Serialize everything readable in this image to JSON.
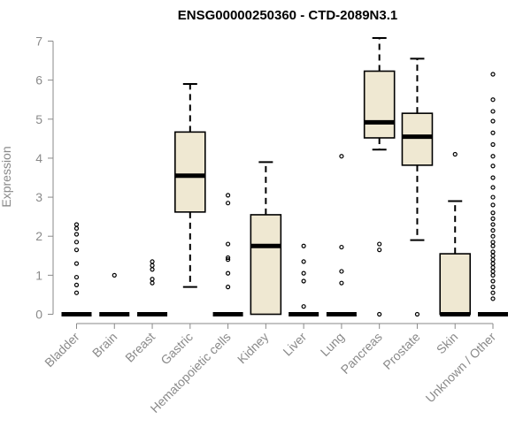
{
  "chart_data": {
    "type": "boxplot",
    "title": "ENSG00000250360 - CTD-2089N3.1",
    "ylabel": "Expression",
    "xlabel": "",
    "ylim": [
      0,
      7
    ],
    "yticks": [
      0,
      1,
      2,
      3,
      4,
      5,
      6,
      7
    ],
    "grid": false,
    "colors": {
      "box_fill": "#efe8d2",
      "stroke": "#000000",
      "axis": "#8a8a8a"
    },
    "categories": [
      "Bladder",
      "Brain",
      "Breast",
      "Gastric",
      "Hematopoietic cells",
      "Kidney",
      "Liver",
      "Lung",
      "Pancreas",
      "Prostate",
      "Skin",
      "Unknown / Other"
    ],
    "boxes": [
      {
        "name": "Bladder",
        "min": 0,
        "q1": 0,
        "median": 0,
        "q3": 0,
        "max": 0,
        "outliers": [
          0.55,
          0.75,
          0.95,
          1.3,
          1.65,
          1.85,
          2.05,
          2.2,
          2.3
        ]
      },
      {
        "name": "Brain",
        "min": 0,
        "q1": 0,
        "median": 0,
        "q3": 0,
        "max": 0,
        "outliers": [
          1.0
        ]
      },
      {
        "name": "Breast",
        "min": 0,
        "q1": 0,
        "median": 0,
        "q3": 0,
        "max": 0,
        "outliers": [
          0.8,
          0.9,
          1.15,
          1.25,
          1.35
        ]
      },
      {
        "name": "Gastric",
        "min": 0.7,
        "q1": 2.62,
        "median": 3.55,
        "q3": 4.67,
        "max": 5.9,
        "outliers": []
      },
      {
        "name": "Hematopoietic cells",
        "min": 0,
        "q1": 0,
        "median": 0,
        "q3": 0,
        "max": 0,
        "outliers": [
          0.7,
          1.05,
          1.4,
          1.45,
          1.8,
          2.85,
          3.05
        ]
      },
      {
        "name": "Kidney",
        "min": 0,
        "q1": 0,
        "median": 1.75,
        "q3": 2.55,
        "max": 3.9,
        "outliers": []
      },
      {
        "name": "Liver",
        "min": 0,
        "q1": 0,
        "median": 0,
        "q3": 0,
        "max": 0,
        "outliers": [
          0.2,
          0.85,
          1.05,
          1.35,
          1.75
        ]
      },
      {
        "name": "Lung",
        "min": 0,
        "q1": 0,
        "median": 0,
        "q3": 0,
        "max": 0,
        "outliers": [
          0.8,
          1.1,
          1.72,
          4.05
        ]
      },
      {
        "name": "Pancreas",
        "min": 4.22,
        "q1": 4.52,
        "median": 4.92,
        "q3": 6.23,
        "max": 7.08,
        "outliers": [
          0,
          1.65,
          1.8
        ]
      },
      {
        "name": "Prostate",
        "min": 1.9,
        "q1": 3.82,
        "median": 4.55,
        "q3": 5.15,
        "max": 6.55,
        "outliers": [
          0
        ]
      },
      {
        "name": "Skin",
        "min": 0,
        "q1": 0,
        "median": 0,
        "q3": 1.55,
        "max": 2.9,
        "outliers": [
          4.1
        ]
      },
      {
        "name": "Unknown / Other",
        "min": 0,
        "q1": 0,
        "median": 0,
        "q3": 0,
        "max": 0,
        "outliers": [
          0.4,
          0.55,
          0.7,
          0.85,
          1.0,
          1.1,
          1.2,
          1.3,
          1.4,
          1.5,
          1.6,
          1.75,
          1.85,
          2.0,
          2.15,
          2.3,
          2.45,
          2.6,
          2.8,
          3.0,
          3.25,
          3.5,
          3.8,
          4.05,
          4.35,
          4.65,
          4.95,
          5.2,
          5.5,
          6.15
        ]
      }
    ]
  }
}
